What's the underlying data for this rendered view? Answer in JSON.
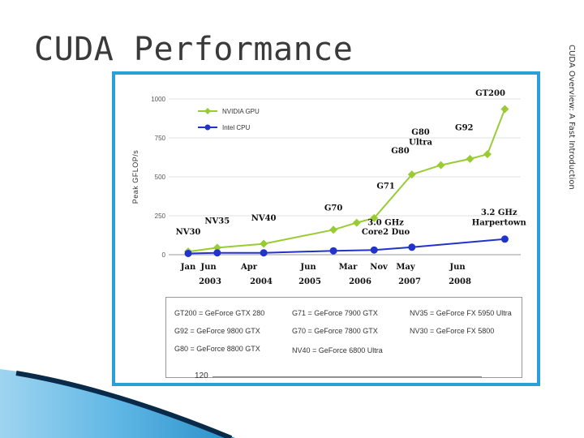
{
  "slide": {
    "title": "CUDA Performance",
    "side_note": "CUDA Overview: A Fast Introduction",
    "bottom_number": "120"
  },
  "colors": {
    "frame": "#2aa0d8",
    "nvidia": "#99cc33",
    "intel": "#2233cc",
    "swoosh_dark": "#0a2a4a",
    "swoosh_light": "#5fb7e5"
  },
  "chart_data": {
    "type": "line",
    "title": "",
    "xlabel": "",
    "ylabel": "Peak GFLOP/s",
    "ylim": [
      0,
      1000
    ],
    "y_ticks": [
      "0",
      "250",
      "500",
      "750",
      "1000"
    ],
    "x_months": [
      "Jan",
      "Jun",
      "Apr",
      "Jun",
      "Mar",
      "Nov",
      "May",
      "Jun"
    ],
    "x_years": [
      "2003",
      "2004",
      "2005",
      "2006",
      "2007",
      "2008"
    ],
    "legend_position": "top-left",
    "grid": true,
    "series": [
      {
        "name": "NVIDIA GPU",
        "color": "#99cc33",
        "points": [
          {
            "x": 2003.0,
            "y": 20
          },
          {
            "x": 2003.5,
            "y": 45
          },
          {
            "x": 2004.3,
            "y": 70
          },
          {
            "x": 2005.5,
            "y": 160
          },
          {
            "x": 2005.9,
            "y": 205
          },
          {
            "x": 2006.2,
            "y": 235
          },
          {
            "x": 2006.85,
            "y": 515
          },
          {
            "x": 2007.35,
            "y": 575
          },
          {
            "x": 2007.85,
            "y": 615
          },
          {
            "x": 2008.15,
            "y": 645
          },
          {
            "x": 2008.45,
            "y": 935
          }
        ]
      },
      {
        "name": "Intel CPU",
        "color": "#2233cc",
        "points": [
          {
            "x": 2003.0,
            "y": 8
          },
          {
            "x": 2003.5,
            "y": 12
          },
          {
            "x": 2004.3,
            "y": 12
          },
          {
            "x": 2005.5,
            "y": 25
          },
          {
            "x": 2006.2,
            "y": 30
          },
          {
            "x": 2006.85,
            "y": 48
          },
          {
            "x": 2008.45,
            "y": 100
          }
        ]
      }
    ],
    "annotations": [
      {
        "text": "NV30",
        "x": 2003.0,
        "y": 130
      },
      {
        "text": "NV35",
        "x": 2003.5,
        "y": 200
      },
      {
        "text": "NV40",
        "x": 2004.3,
        "y": 220
      },
      {
        "text": "G70",
        "x": 2005.5,
        "y": 285
      },
      {
        "text": "G71",
        "x": 2006.4,
        "y": 425
      },
      {
        "text": "G80",
        "x": 2006.65,
        "y": 650
      },
      {
        "text": "G80",
        "x": 2007.0,
        "y": 770
      },
      {
        "text": "Ultra",
        "x": 2007.0,
        "y": 705
      },
      {
        "text": "G92",
        "x": 2007.75,
        "y": 800
      },
      {
        "text": "GT200",
        "x": 2008.2,
        "y": 1020
      },
      {
        "text": "3.0 GHz",
        "x": 2006.4,
        "y": 190
      },
      {
        "text": "Core2 Duo",
        "x": 2006.4,
        "y": 130
      },
      {
        "text": "3.2 GHz",
        "x": 2008.35,
        "y": 255
      },
      {
        "text": "Harpertown",
        "x": 2008.35,
        "y": 190
      }
    ]
  },
  "gpu_table": [
    [
      "GT200 = GeForce GTX 280",
      "G71 = GeForce 7900 GTX",
      "NV35 = GeForce FX 5950 Ultra"
    ],
    [
      "G92 = GeForce 9800 GTX",
      "G70 = GeForce 7800 GTX",
      "NV30 = GeForce FX 5800"
    ],
    [
      "G80 = GeForce 8800 GTX",
      "NV40 = GeForce 6800 Ultra",
      ""
    ]
  ]
}
